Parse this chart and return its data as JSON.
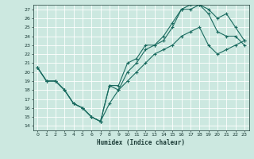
{
  "title": "",
  "xlabel": "Humidex (Indice chaleur)",
  "background_color": "#cce8e0",
  "grid_color": "#ffffff",
  "line_color": "#1a6b60",
  "xlim": [
    -0.5,
    23.5
  ],
  "ylim": [
    13.5,
    27.5
  ],
  "xticks": [
    0,
    1,
    2,
    3,
    4,
    5,
    6,
    7,
    8,
    9,
    10,
    11,
    12,
    13,
    14,
    15,
    16,
    17,
    18,
    19,
    20,
    21,
    22,
    23
  ],
  "yticks": [
    14,
    15,
    16,
    17,
    18,
    19,
    20,
    21,
    22,
    23,
    24,
    25,
    26,
    27
  ],
  "line1_x": [
    0,
    1,
    2,
    3,
    4,
    5,
    6,
    7,
    8,
    9,
    10,
    11,
    12,
    13,
    14,
    15,
    16,
    17,
    18,
    19,
    20,
    21,
    22,
    23
  ],
  "line1_y": [
    20.5,
    19,
    19,
    18,
    16.5,
    16,
    15,
    14.5,
    18.5,
    18.5,
    21,
    21.5,
    23,
    23,
    24,
    25.5,
    27,
    27,
    27.5,
    27,
    26,
    26.5,
    25,
    23.5
  ],
  "line2_x": [
    0,
    1,
    2,
    3,
    4,
    5,
    6,
    7,
    8,
    9,
    10,
    11,
    12,
    13,
    14,
    15,
    16,
    17,
    18,
    19,
    20,
    21,
    22,
    23
  ],
  "line2_y": [
    20.5,
    19,
    19,
    18,
    16.5,
    16,
    15,
    14.5,
    18.5,
    18,
    20,
    21,
    22.5,
    23,
    23.5,
    25,
    27,
    27.5,
    27.5,
    26.5,
    24.5,
    24,
    24,
    23
  ],
  "line3_x": [
    0,
    1,
    2,
    3,
    4,
    5,
    6,
    7,
    8,
    9,
    10,
    11,
    12,
    13,
    14,
    15,
    16,
    17,
    18,
    19,
    20,
    21,
    22,
    23
  ],
  "line3_y": [
    20.5,
    19,
    19,
    18,
    16.5,
    16,
    15,
    14.5,
    16.5,
    18,
    19,
    20,
    21,
    22,
    22.5,
    23,
    24,
    24.5,
    25,
    23,
    22,
    22.5,
    23,
    23.5
  ]
}
